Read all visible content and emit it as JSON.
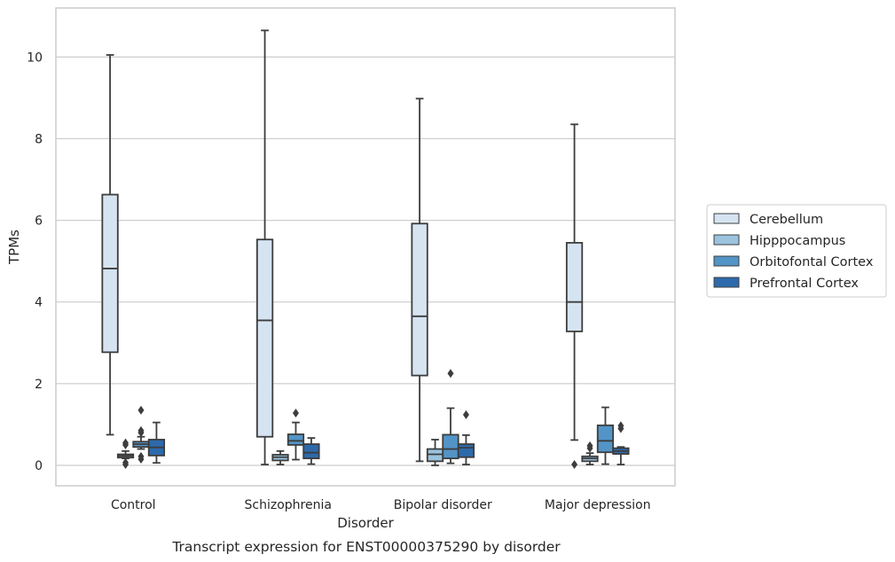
{
  "chart_data": {
    "type": "boxplot",
    "caption": "Transcript expression for ENST00000375290 by disorder",
    "xlabel": "Disorder",
    "ylabel": "TPMs",
    "ylim": [
      -0.5,
      11.2
    ],
    "yticks": [
      0,
      2,
      4,
      6,
      8,
      10
    ],
    "grid": true,
    "legend_position": "right",
    "categories": [
      "Control",
      "Schizophrenia",
      "Bipolar disorder",
      "Major depression"
    ],
    "series": [
      {
        "name": "Cerebellum",
        "color": "#d6e4f2",
        "boxes": [
          {
            "whislo": 0.75,
            "q1": 2.77,
            "med": 4.82,
            "q3": 6.63,
            "whishi": 10.05,
            "fliers": []
          },
          {
            "whislo": 0.02,
            "q1": 0.7,
            "med": 3.55,
            "q3": 5.53,
            "whishi": 10.65,
            "fliers": []
          },
          {
            "whislo": 0.1,
            "q1": 2.2,
            "med": 3.65,
            "q3": 5.92,
            "whishi": 8.98,
            "fliers": []
          },
          {
            "whislo": 0.62,
            "q1": 3.28,
            "med": 4.0,
            "q3": 5.45,
            "whishi": 8.35,
            "fliers": [
              0.02
            ]
          }
        ]
      },
      {
        "name": "Hipppocampus",
        "color": "#9bc3de",
        "boxes": [
          {
            "whislo": 0.17,
            "q1": 0.19,
            "med": 0.23,
            "q3": 0.27,
            "whishi": 0.35,
            "fliers": [
              0.02,
              0.07,
              0.5,
              0.55
            ]
          },
          {
            "whislo": 0.02,
            "q1": 0.12,
            "med": 0.2,
            "q3": 0.26,
            "whishi": 0.35,
            "fliers": []
          },
          {
            "whislo": 0.0,
            "q1": 0.1,
            "med": 0.27,
            "q3": 0.4,
            "whishi": 0.63,
            "fliers": []
          },
          {
            "whislo": 0.02,
            "q1": 0.1,
            "med": 0.17,
            "q3": 0.22,
            "whishi": 0.3,
            "fliers": [
              0.42,
              0.48
            ]
          }
        ]
      },
      {
        "name": "Orbitofontal Cortex",
        "color": "#5394c7",
        "boxes": [
          {
            "whislo": 0.4,
            "q1": 0.45,
            "med": 0.52,
            "q3": 0.58,
            "whishi": 0.7,
            "fliers": [
              0.15,
              0.22,
              0.8,
              0.85,
              1.35
            ]
          },
          {
            "whislo": 0.14,
            "q1": 0.5,
            "med": 0.6,
            "q3": 0.76,
            "whishi": 1.05,
            "fliers": [
              1.28
            ]
          },
          {
            "whislo": 0.05,
            "q1": 0.17,
            "med": 0.4,
            "q3": 0.75,
            "whishi": 1.4,
            "fliers": [
              2.25
            ]
          },
          {
            "whislo": 0.03,
            "q1": 0.32,
            "med": 0.6,
            "q3": 0.98,
            "whishi": 1.42,
            "fliers": []
          }
        ]
      },
      {
        "name": "Prefrontal Cortex",
        "color": "#2d6aac",
        "boxes": [
          {
            "whislo": 0.06,
            "q1": 0.24,
            "med": 0.44,
            "q3": 0.63,
            "whishi": 1.05,
            "fliers": []
          },
          {
            "whislo": 0.03,
            "q1": 0.17,
            "med": 0.31,
            "q3": 0.52,
            "whishi": 0.67,
            "fliers": []
          },
          {
            "whislo": 0.02,
            "q1": 0.2,
            "med": 0.43,
            "q3": 0.52,
            "whishi": 0.74,
            "fliers": [
              1.24
            ]
          },
          {
            "whislo": 0.02,
            "q1": 0.28,
            "med": 0.35,
            "q3": 0.42,
            "whishi": 0.45,
            "fliers": [
              0.9,
              0.97
            ]
          }
        ]
      }
    ]
  }
}
